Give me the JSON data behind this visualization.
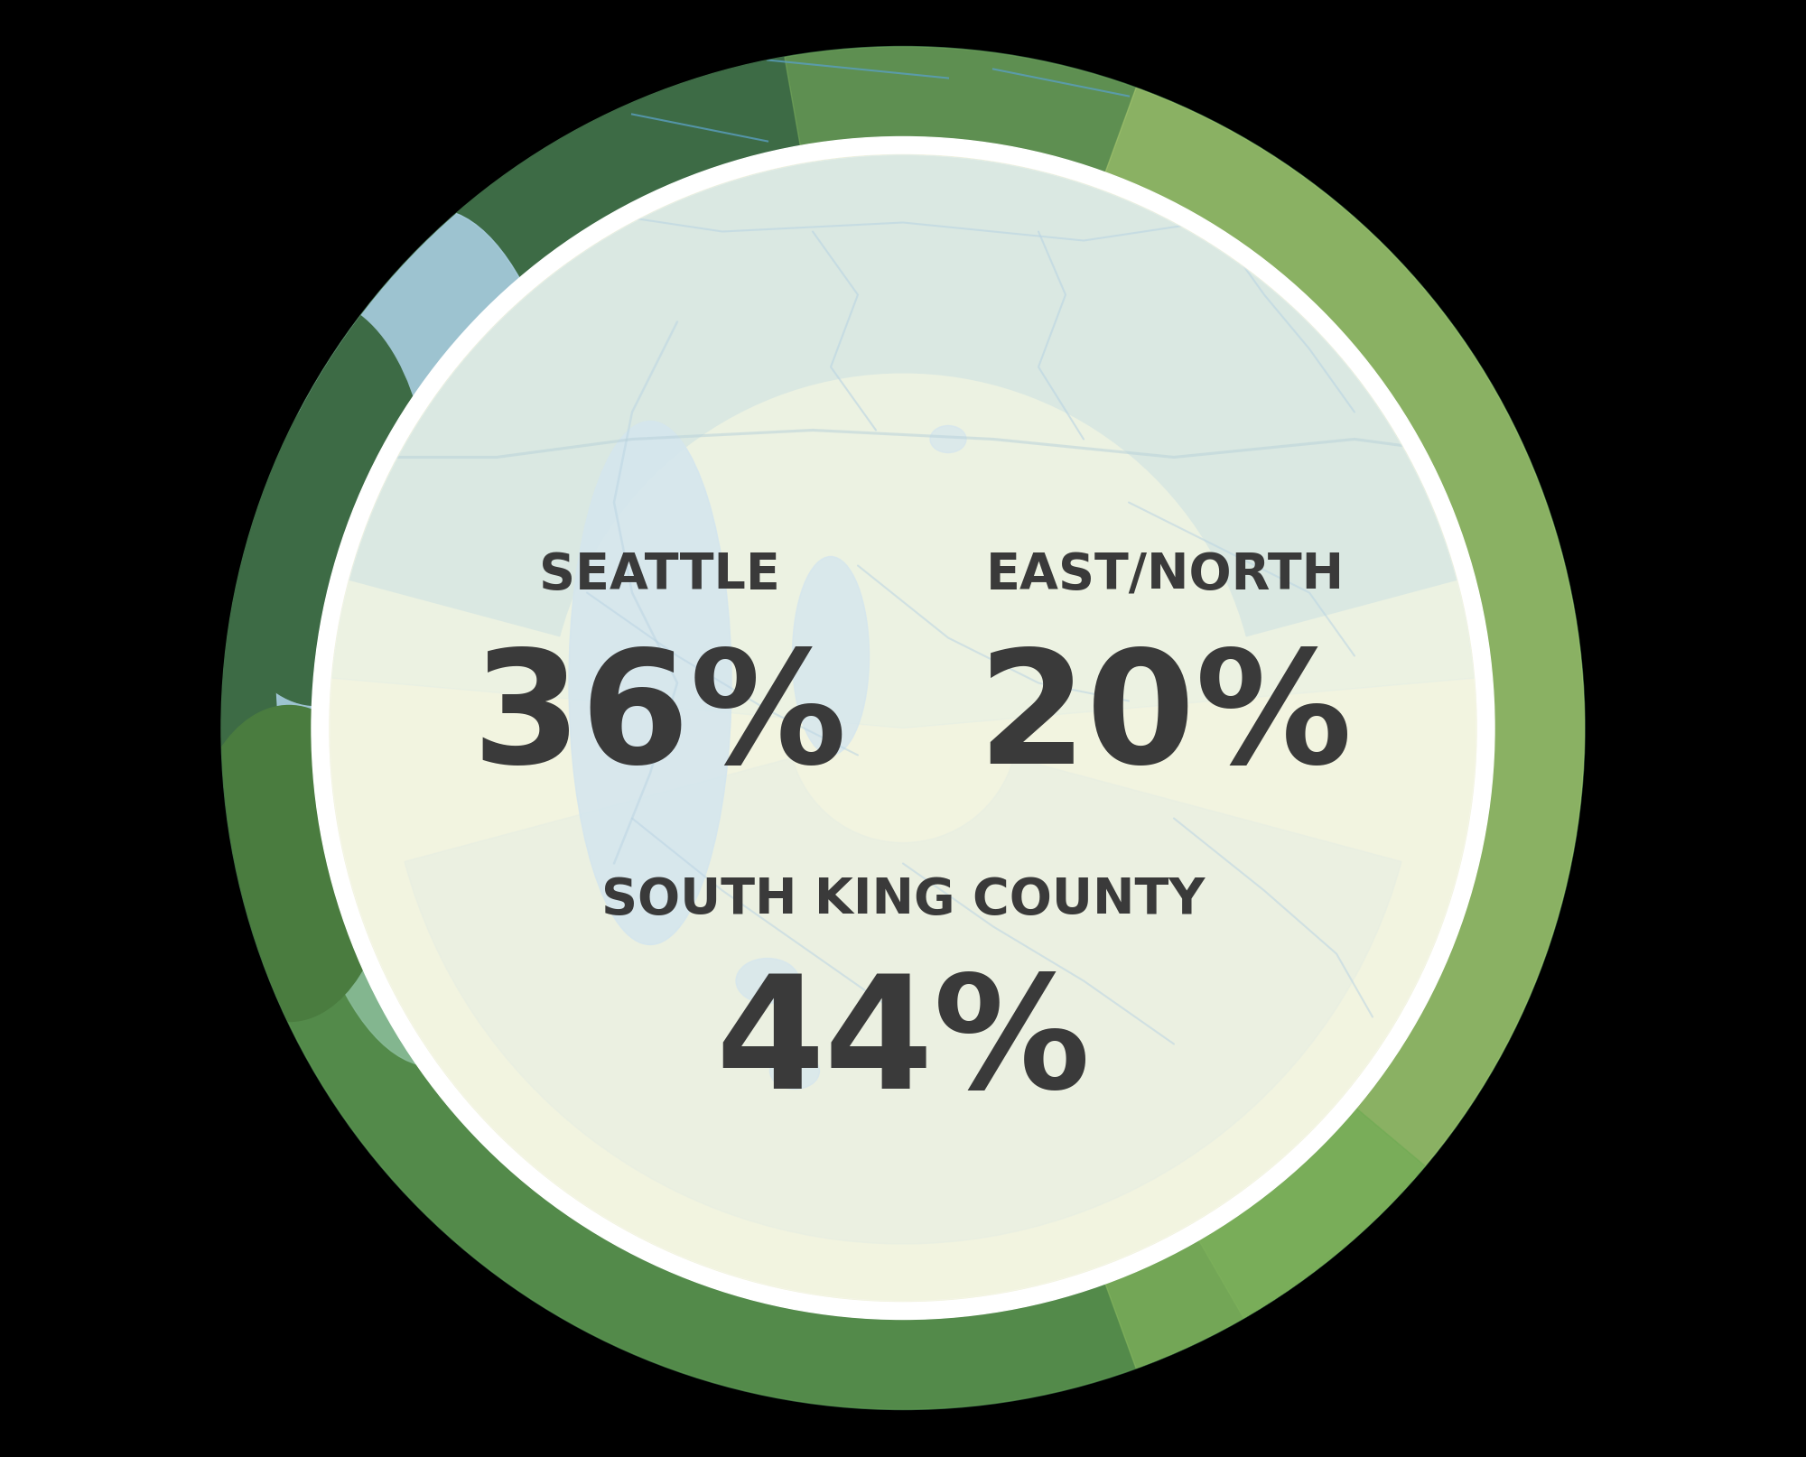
{
  "title_seattle": "SEATTLE",
  "value_seattle": "36%",
  "title_eastnorth": "EAST/NORTH",
  "value_eastnorth": "20%",
  "title_south": "SOUTH KING COUNTY",
  "value_south": "44%",
  "text_color": "#3a3a3a",
  "bg_color": "#000000",
  "outer_map_green_dark": "#3d6b45",
  "outer_map_green_light": "#7aad5c",
  "outer_map_water": "#a8cde0",
  "white_ring_color": "#ffffff",
  "map_land_yellow": "#eef0d5",
  "map_land_light_yellow": "#f3f5de",
  "map_water_blue": "#c5dde8",
  "map_north_teal": "#c8ddd4",
  "map_south_teal_light": "#d4e4d0",
  "map_river_blue": "#a0c4d8",
  "map_river_outline": "#8ab8d0",
  "label_fontsize": 40,
  "value_fontsize": 125
}
